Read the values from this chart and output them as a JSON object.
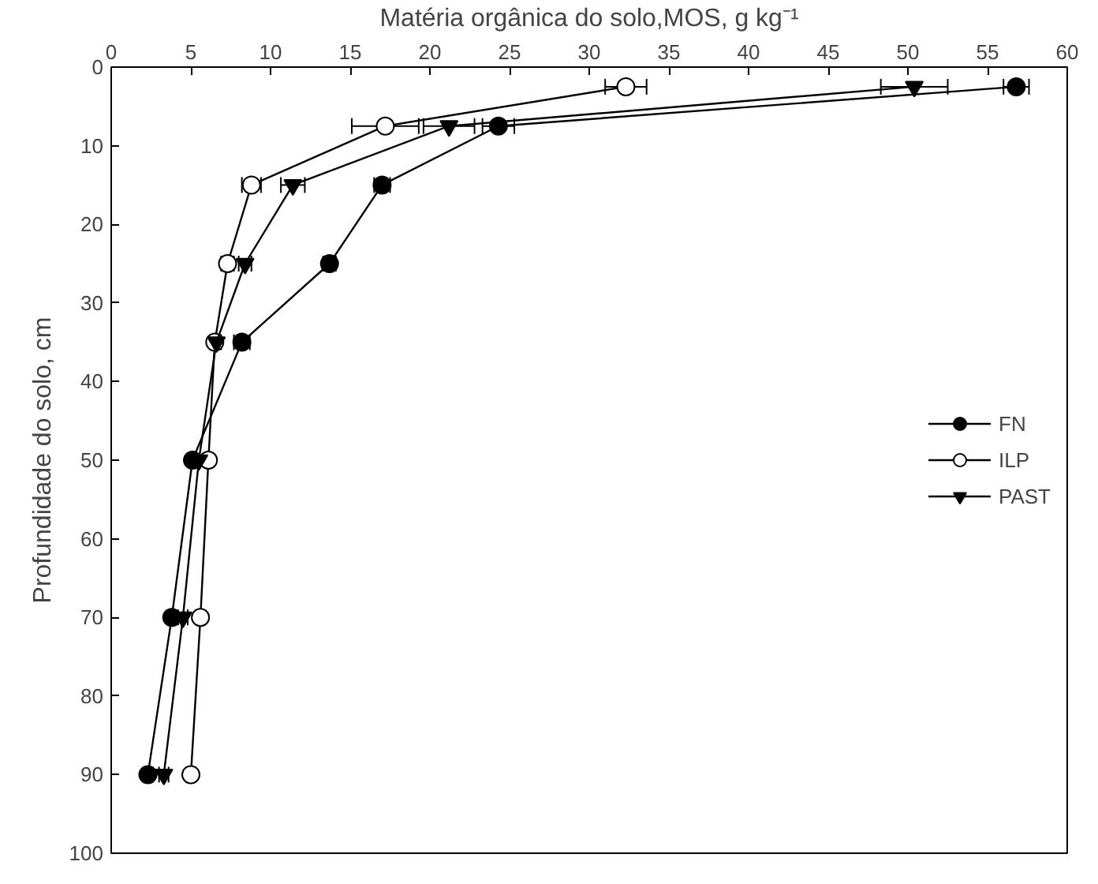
{
  "chart_data": {
    "type": "line",
    "xlabel": "Matéria orgânica do solo,MOS, g kg⁻¹",
    "ylabel": "Profundidade do solo, cm",
    "xlim": [
      0,
      60
    ],
    "xticks": [
      0,
      5,
      10,
      15,
      20,
      25,
      30,
      35,
      40,
      45,
      50,
      55,
      60
    ],
    "ylim": [
      100,
      0
    ],
    "yticks": [
      0,
      10,
      20,
      30,
      40,
      50,
      60,
      70,
      80,
      90,
      100
    ],
    "grid": false,
    "legend": "right",
    "line_style": "solid",
    "series": [
      {
        "name": "FN",
        "color": "#000000",
        "marker": "circle",
        "x": [
          56.8,
          24.3,
          17.0,
          13.7,
          8.2,
          5.1,
          3.8,
          2.3
        ],
        "values": [
          2.5,
          7.5,
          15,
          25,
          35,
          50,
          70,
          90
        ],
        "xerrors": [
          0.8,
          1.0,
          0.5,
          0.4,
          0.5,
          0.3,
          0.3,
          0.3
        ]
      },
      {
        "name": "ILP",
        "color": "#ffffff",
        "marker": "circle",
        "x": [
          32.3,
          17.2,
          8.8,
          7.3,
          6.5,
          6.1,
          5.6,
          5.0
        ],
        "values": [
          2.5,
          7.5,
          15,
          25,
          35,
          50,
          70,
          90
        ],
        "xerrors": [
          1.3,
          2.1,
          0.6,
          0.4,
          0.3,
          0.3,
          0.3,
          0.3
        ]
      },
      {
        "name": "PAST",
        "color": "#000000",
        "marker": "triangle",
        "x": [
          50.4,
          21.2,
          11.4,
          8.4,
          6.6,
          5.5,
          4.5,
          3.3
        ],
        "values": [
          2.5,
          7.5,
          15,
          25,
          35,
          50,
          70,
          90
        ],
        "xerrors": [
          2.1,
          1.6,
          0.75,
          0.4,
          0.3,
          0.3,
          0.3,
          0.3
        ]
      }
    ]
  }
}
